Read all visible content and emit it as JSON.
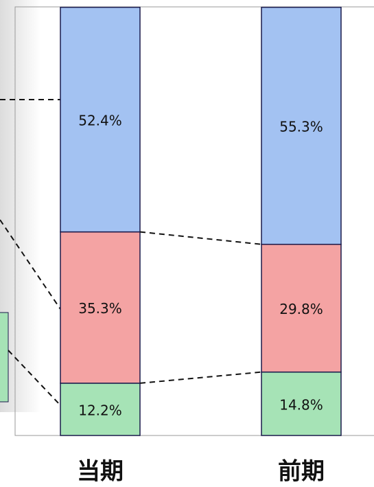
{
  "chart_data": {
    "type": "stacked_bar",
    "categories": [
      "当期",
      "前期"
    ],
    "series": [
      {
        "color": "#a6e3b6",
        "values": [
          12.2,
          14.8
        ],
        "value_labels": [
          "12.2%",
          "14.8%"
        ]
      },
      {
        "color": "#f4a3a3",
        "values": [
          35.3,
          29.8
        ],
        "value_labels": [
          "35.3%",
          "29.8%"
        ]
      },
      {
        "color": "#a3c2f2",
        "values": [
          52.4,
          55.3
        ],
        "value_labels": [
          "52.4%",
          "55.3%"
        ]
      }
    ],
    "ylim": [
      0,
      100
    ]
  }
}
